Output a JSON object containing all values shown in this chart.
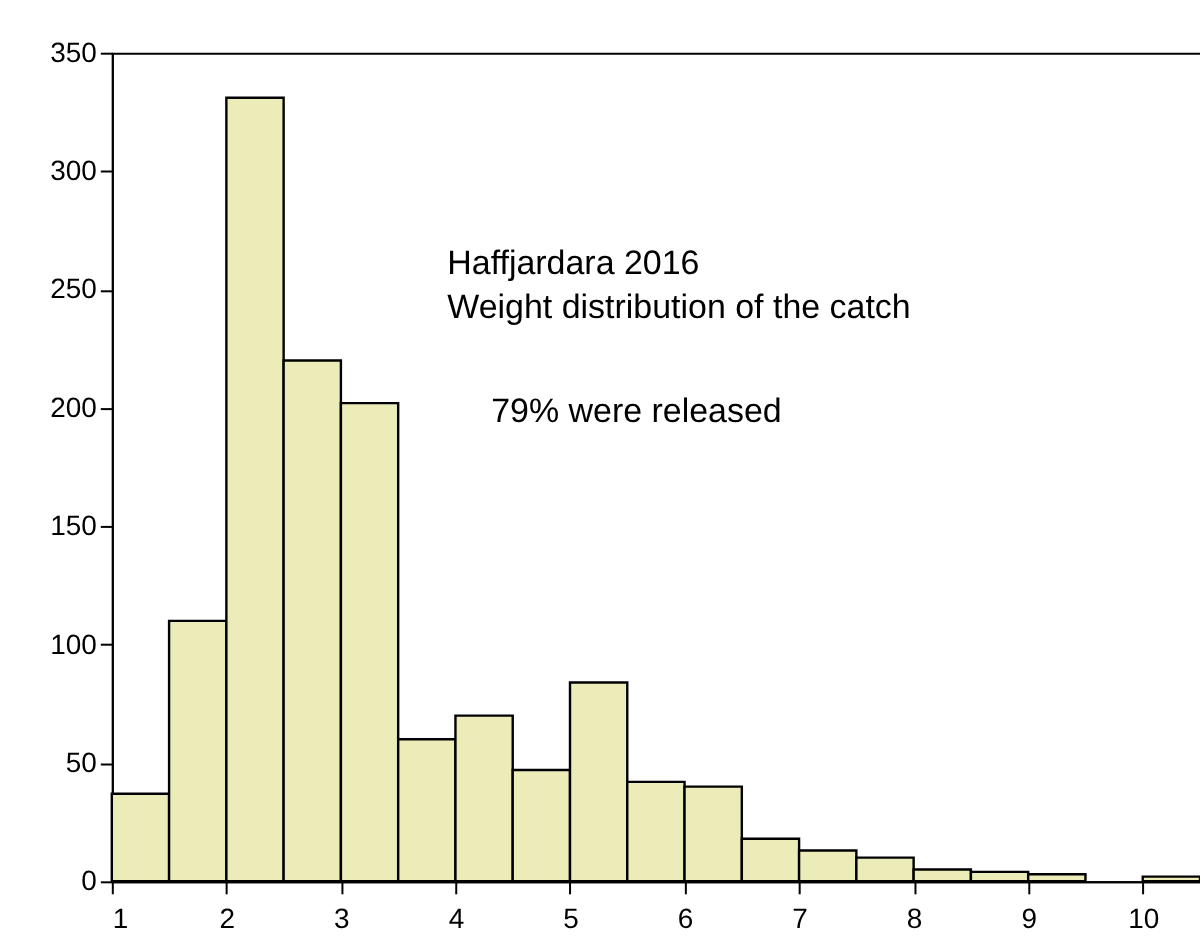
{
  "chart_data": {
    "type": "histogram",
    "bins": [
      1,
      1.5,
      2,
      2.5,
      3,
      3.5,
      4,
      4.5,
      5,
      5.5,
      6,
      6.5,
      7,
      7.5,
      8,
      8.5,
      9,
      9.5,
      10,
      10.5
    ],
    "values": [
      37,
      110,
      331,
      220,
      202,
      60,
      70,
      47,
      84,
      42,
      40,
      18,
      13,
      10,
      5,
      4,
      3,
      0,
      2
    ],
    "color": "#ececb9",
    "xlim": [
      1,
      10.5
    ],
    "xticks": [
      1,
      2,
      3,
      4,
      5,
      6,
      7,
      8,
      9,
      10
    ],
    "ylim": [
      0,
      350
    ],
    "yticks": [
      0,
      50,
      100,
      150,
      200,
      250,
      300,
      350
    ],
    "grid": false,
    "annotations": [
      "Haffjardara 2016",
      "Weight distribution of the catch",
      "79% were released"
    ]
  }
}
